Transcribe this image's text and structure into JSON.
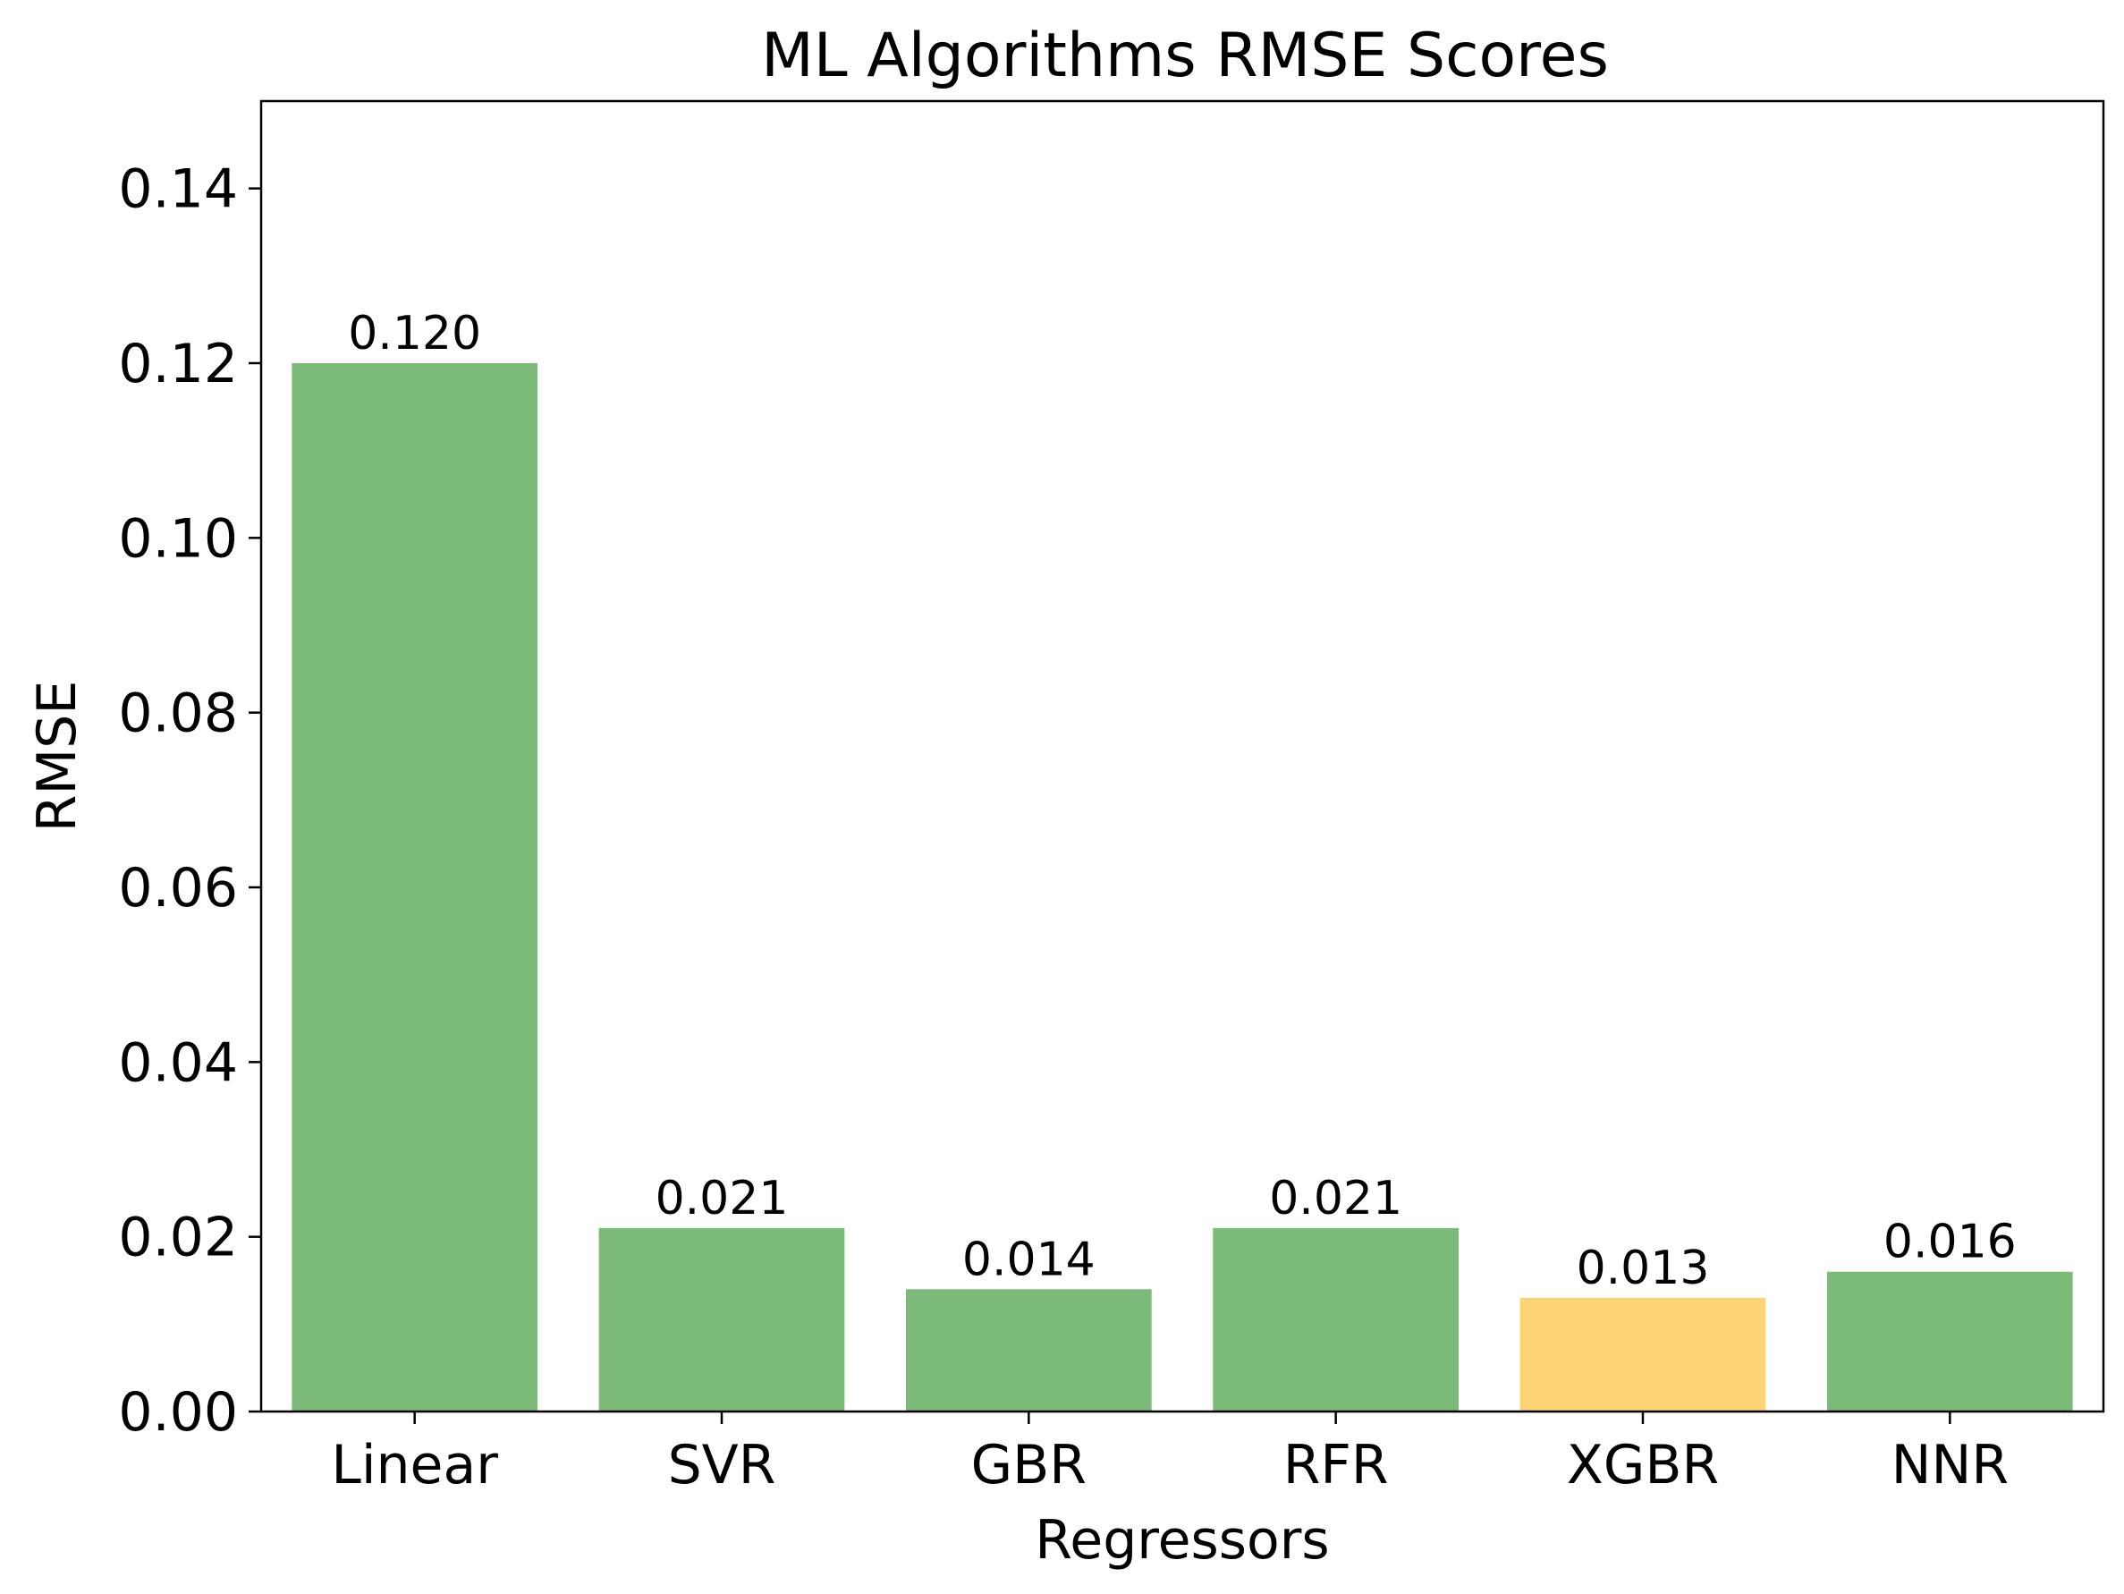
{
  "chart_data": {
    "type": "bar",
    "title": "ML Algorithms RMSE Scores",
    "xlabel": "Regressors",
    "ylabel": "RMSE",
    "categories": [
      "Linear",
      "SVR",
      "GBR",
      "RFR",
      "XGBR",
      "NNR"
    ],
    "values": [
      0.12,
      0.021,
      0.014,
      0.021,
      0.013,
      0.016
    ],
    "value_labels": [
      "0.120",
      "0.021",
      "0.014",
      "0.021",
      "0.013",
      "0.016"
    ],
    "ylim": [
      0,
      0.15
    ],
    "yticks": [
      0.0,
      0.02,
      0.04,
      0.06,
      0.08,
      0.1,
      0.12,
      0.14
    ],
    "ytick_labels": [
      "0.00",
      "0.02",
      "0.04",
      "0.06",
      "0.08",
      "0.10",
      "0.12",
      "0.14"
    ],
    "grid": false,
    "colors": {
      "default_bar": "#7cba7a",
      "highlight_bar": "#fed375",
      "highlight_category": "XGBR"
    }
  }
}
